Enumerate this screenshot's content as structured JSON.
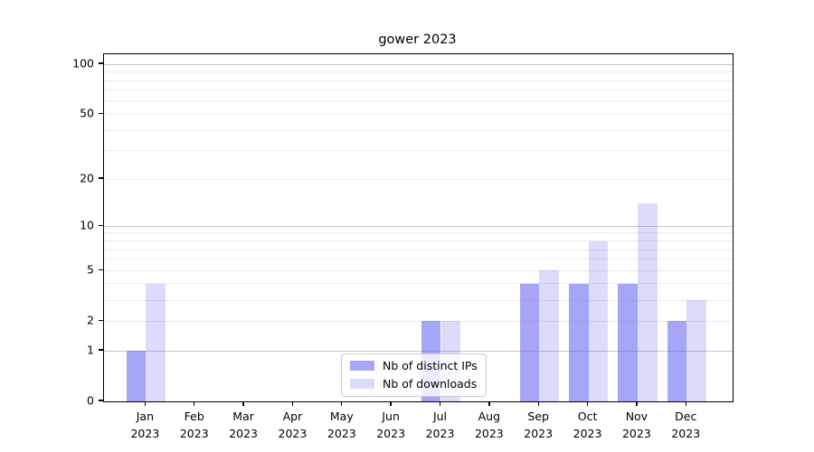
{
  "chart_data": {
    "type": "bar",
    "title": "gower 2023",
    "categories": [
      {
        "month": "Jan",
        "year": "2023"
      },
      {
        "month": "Feb",
        "year": "2023"
      },
      {
        "month": "Mar",
        "year": "2023"
      },
      {
        "month": "Apr",
        "year": "2023"
      },
      {
        "month": "May",
        "year": "2023"
      },
      {
        "month": "Jun",
        "year": "2023"
      },
      {
        "month": "Jul",
        "year": "2023"
      },
      {
        "month": "Aug",
        "year": "2023"
      },
      {
        "month": "Sep",
        "year": "2023"
      },
      {
        "month": "Oct",
        "year": "2023"
      },
      {
        "month": "Nov",
        "year": "2023"
      },
      {
        "month": "Dec",
        "year": "2023"
      }
    ],
    "series": [
      {
        "name": "Nb of distinct IPs",
        "color": "rgba(93,93,243,0.55)",
        "values": [
          1,
          0,
          0,
          0,
          0,
          0,
          2,
          0,
          4,
          4,
          4,
          2
        ]
      },
      {
        "name": "Nb of downloads",
        "color": "rgba(93,93,243,0.22)",
        "values": [
          4,
          0,
          0,
          0,
          0,
          0,
          2,
          0,
          5,
          8,
          14,
          3
        ]
      }
    ],
    "yscale": "log10(1+x)",
    "ylim": [
      0,
      115
    ],
    "yticks": [
      0,
      1,
      2,
      5,
      10,
      20,
      50,
      100
    ],
    "grid": {
      "minor_values": [
        2,
        3,
        4,
        5,
        6,
        7,
        8,
        9,
        20,
        30,
        40,
        50,
        60,
        70,
        80,
        90
      ],
      "major_values": [
        1,
        10,
        100
      ],
      "minor_color": "#ebebeb",
      "major_color": "#c6c6c6"
    },
    "legend_position": "lower center"
  }
}
